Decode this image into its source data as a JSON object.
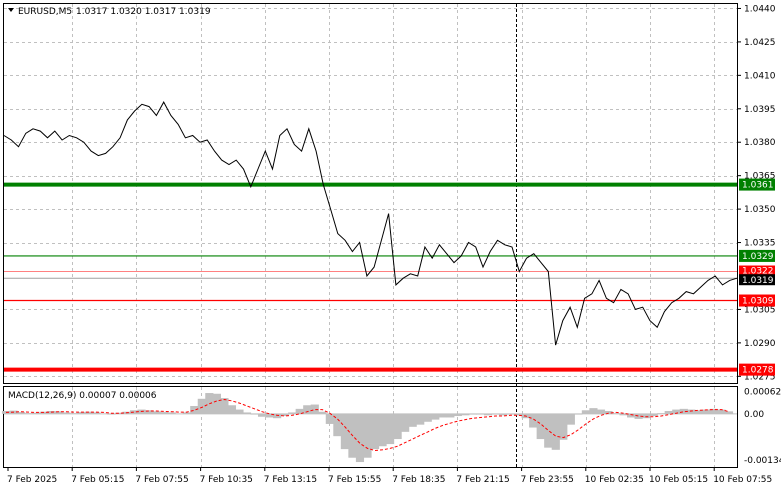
{
  "header": {
    "symbol_label": "EURUSD,M5",
    "ohlc_label": "1.0317 1.0320 1.0317 1.0319"
  },
  "macd": {
    "label": "MACD(12,26,9) 0.00007 0.00006",
    "axis_labels": [
      "0.00062",
      "0.00",
      "-0.00134"
    ]
  },
  "colors": {
    "price_line": "#000000",
    "support_red": "#ff0000",
    "resistance_green": "#008000",
    "histogram": "#c0c0c0",
    "signal_line": "#ff0000",
    "grid": "#c0c0c0"
  },
  "chart_data": {
    "type": "line",
    "symbol": "EURUSD",
    "timeframe": "M5",
    "y_ticks": [
      "1.0440",
      "1.0425",
      "1.0410",
      "1.0395",
      "1.0380",
      "1.0365",
      "1.0350",
      "1.0335",
      "1.0305",
      "1.0290",
      "1.0275"
    ],
    "ylim": [
      1.0272,
      1.0442
    ],
    "x_ticks": [
      "7 Feb 2025",
      "7 Feb 05:15",
      "7 Feb 07:55",
      "7 Feb 10:35",
      "7 Feb 13:15",
      "7 Feb 15:55",
      "7 Feb 18:35",
      "7 Feb 21:15",
      "7 Feb 23:55",
      "10 Feb 02:35",
      "10 Feb 05:15",
      "10 Feb 07:55"
    ],
    "levels": [
      {
        "label": "1.0361",
        "value": 1.0361,
        "color": "#008000",
        "thick": true
      },
      {
        "label": "1.0329",
        "value": 1.0329,
        "color": "#008000",
        "thick": false
      },
      {
        "label": "1.0309",
        "value": 1.0309,
        "color": "#ff0000",
        "thick": false
      },
      {
        "label": "1.0278",
        "value": 1.0278,
        "color": "#ff0000",
        "thick": true
      }
    ],
    "ask_label": "1.0322",
    "ask_value": 1.0322,
    "bid_label": "1.0319",
    "bid_value": 1.0319,
    "price_series": [
      [
        0,
        1.0383
      ],
      [
        1,
        1.0381
      ],
      [
        2,
        1.0378
      ],
      [
        3,
        1.0384
      ],
      [
        4,
        1.0386
      ],
      [
        5,
        1.0385
      ],
      [
        6,
        1.0382
      ],
      [
        7,
        1.0385
      ],
      [
        8,
        1.0381
      ],
      [
        9,
        1.0383
      ],
      [
        10,
        1.0382
      ],
      [
        11,
        1.038
      ],
      [
        12,
        1.0376
      ],
      [
        13,
        1.0374
      ],
      [
        14,
        1.0375
      ],
      [
        15,
        1.0378
      ],
      [
        16,
        1.0382
      ],
      [
        17,
        1.039
      ],
      [
        18,
        1.0394
      ],
      [
        19,
        1.0397
      ],
      [
        20,
        1.0396
      ],
      [
        21,
        1.0392
      ],
      [
        22,
        1.0398
      ],
      [
        23,
        1.0392
      ],
      [
        24,
        1.0388
      ],
      [
        25,
        1.0382
      ],
      [
        26,
        1.0383
      ],
      [
        27,
        1.038
      ],
      [
        28,
        1.0381
      ],
      [
        29,
        1.0376
      ],
      [
        30,
        1.0372
      ],
      [
        31,
        1.037
      ],
      [
        32,
        1.0372
      ],
      [
        33,
        1.0368
      ],
      [
        34,
        1.036
      ],
      [
        35,
        1.0368
      ],
      [
        36,
        1.0376
      ],
      [
        37,
        1.0368
      ],
      [
        38,
        1.0383
      ],
      [
        39,
        1.0386
      ],
      [
        40,
        1.0379
      ],
      [
        41,
        1.0376
      ],
      [
        42,
        1.0386
      ],
      [
        43,
        1.0376
      ],
      [
        44,
        1.0361
      ],
      [
        45,
        1.035
      ],
      [
        46,
        1.0339
      ],
      [
        47,
        1.0336
      ],
      [
        48,
        1.0331
      ],
      [
        49,
        1.0335
      ],
      [
        50,
        1.032
      ],
      [
        51,
        1.0324
      ],
      [
        52,
        1.0336
      ],
      [
        53,
        1.0348
      ],
      [
        54,
        1.0316
      ],
      [
        55,
        1.0319
      ],
      [
        56,
        1.0321
      ],
      [
        57,
        1.032
      ],
      [
        58,
        1.0333
      ],
      [
        59,
        1.0328
      ],
      [
        60,
        1.0334
      ],
      [
        61,
        1.033
      ],
      [
        62,
        1.0326
      ],
      [
        63,
        1.0329
      ],
      [
        64,
        1.0335
      ],
      [
        65,
        1.0333
      ],
      [
        66,
        1.0324
      ],
      [
        67,
        1.0331
      ],
      [
        68,
        1.0336
      ],
      [
        69,
        1.0334
      ],
      [
        70,
        1.0333
      ],
      [
        71,
        1.0322
      ],
      [
        72,
        1.0328
      ],
      [
        73,
        1.033
      ],
      [
        74,
        1.0326
      ],
      [
        75,
        1.0322
      ],
      [
        76,
        1.0289
      ],
      [
        77,
        1.03
      ],
      [
        78,
        1.0306
      ],
      [
        79,
        1.0297
      ],
      [
        80,
        1.031
      ],
      [
        81,
        1.0312
      ],
      [
        82,
        1.0318
      ],
      [
        83,
        1.031
      ],
      [
        84,
        1.0308
      ],
      [
        85,
        1.0314
      ],
      [
        86,
        1.0312
      ],
      [
        87,
        1.0305
      ],
      [
        88,
        1.0306
      ],
      [
        89,
        1.03
      ],
      [
        90,
        1.0297
      ],
      [
        91,
        1.0304
      ],
      [
        92,
        1.0308
      ],
      [
        93,
        1.031
      ],
      [
        94,
        1.0313
      ],
      [
        95,
        1.0312
      ],
      [
        96,
        1.0315
      ],
      [
        97,
        1.0318
      ],
      [
        98,
        1.032
      ],
      [
        99,
        1.0316
      ],
      [
        100,
        1.0318
      ],
      [
        101,
        1.0319
      ]
    ],
    "macd_ylim": [
      -0.00145,
      0.00072
    ],
    "macd_histogram": [
      8e-05,
      9e-05,
      5e-05,
      2e-05,
      3e-05,
      6e-05,
      8e-05,
      7e-05,
      4e-05,
      2e-05,
      5e-05,
      6e-05,
      4e-05,
      1e-05,
      -2e-05,
      3e-05,
      6e-05,
      0.0001,
      0.00012,
      0.0001,
      7e-05,
      5e-05,
      4e-05,
      1e-05,
      4e-05,
      0.00022,
      0.00042,
      0.00058,
      0.00056,
      0.00044,
      0.00024,
      0.00012,
      4e-05,
      -2e-05,
      -8e-05,
      -0.0001,
      -0.00012,
      -6e-05,
      4e-05,
      0.00014,
      0.00024,
      0.00026,
      6e-05,
      -0.00028,
      -0.00062,
      -0.00098,
      -0.00122,
      -0.00134,
      -0.00122,
      -0.00098,
      -0.0009,
      -0.00084,
      -0.0007,
      -0.0005,
      -0.00036,
      -0.0003,
      -0.00022,
      -0.00016,
      -0.0001,
      -0.0001,
      -6e-05,
      -4e-05,
      -2e-05,
      -2e-05,
      -4e-05,
      -2e-05,
      -4e-05,
      -2e-05,
      -4e-05,
      -0.00012,
      -0.00038,
      -0.0007,
      -0.00094,
      -0.001,
      -0.00072,
      -0.0003,
      -2e-05,
      0.0001,
      0.00016,
      0.00012,
      8e-05,
      2e-05,
      -4e-05,
      -0.0001,
      -0.00014,
      -0.00012,
      -6e-05,
      2e-05,
      8e-05,
      0.00012,
      0.00014,
      0.00012,
      0.0001,
      0.00012,
      0.00014,
      0.00012,
      7e-05
    ],
    "macd_signal": [
      4e-05,
      5e-05,
      6e-05,
      5e-05,
      4e-05,
      4e-05,
      5e-05,
      6e-05,
      6e-05,
      5e-05,
      5e-05,
      5e-05,
      5e-05,
      4e-05,
      2e-05,
      2e-05,
      3e-05,
      5e-05,
      7e-05,
      8e-05,
      8e-05,
      7e-05,
      6e-05,
      5e-05,
      5e-05,
      0.0001,
      0.00018,
      0.00028,
      0.00036,
      0.0004,
      0.00036,
      0.0003,
      0.00022,
      0.00014,
      6e-05,
      0.0,
      -4e-05,
      -6e-05,
      -4e-05,
      0.0,
      6e-05,
      0.00012,
      0.00012,
      2e-05,
      -0.00014,
      -0.00036,
      -0.0006,
      -0.00082,
      -0.00096,
      -0.00102,
      -0.001,
      -0.00096,
      -0.0009,
      -0.0008,
      -0.0007,
      -0.0006,
      -0.0005,
      -0.0004,
      -0.00032,
      -0.00026,
      -0.0002,
      -0.00016,
      -0.00012,
      -0.0001,
      -8e-05,
      -6e-05,
      -6e-05,
      -4e-05,
      -4e-05,
      -6e-05,
      -0.00014,
      -0.00028,
      -0.00046,
      -0.00062,
      -0.00066,
      -0.00058,
      -0.00044,
      -0.00028,
      -0.00014,
      -4e-05,
      2e-05,
      4e-05,
      2e-05,
      -2e-05,
      -6e-05,
      -8e-05,
      -8e-05,
      -6e-05,
      -2e-05,
      2e-05,
      6e-05,
      8e-05,
      0.0001,
      0.00011,
      0.00012,
      0.00012,
      6e-05
    ]
  }
}
